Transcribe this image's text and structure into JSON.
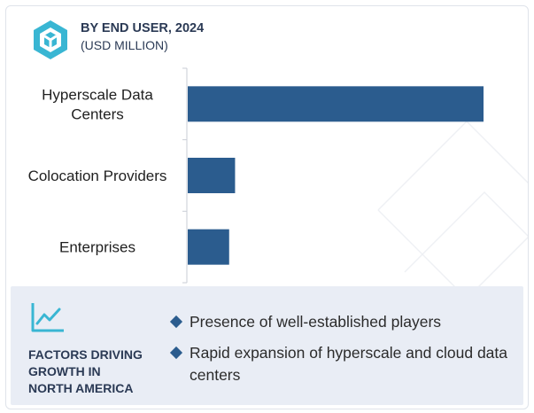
{
  "header": {
    "title": "BY END USER, 2024",
    "subtitle": "(USD MILLION)",
    "logo_icon": "cube-icon",
    "logo_color": "#39b6d3"
  },
  "chart_data": {
    "type": "bar",
    "orientation": "horizontal",
    "categories": [
      [
        "Hyperscale Data",
        "Centers"
      ],
      [
        "Colocation Providers"
      ],
      [
        "Enterprises"
      ]
    ],
    "values": [
      100,
      16,
      14
    ],
    "value_scale": "relative (no axis values shown)",
    "bar_color": "#2b5c8e",
    "grid": false,
    "legend": "none"
  },
  "factors": {
    "icon": "trend-line-icon",
    "title_lines": [
      "FACTORS DRIVING",
      "GROWTH IN",
      "NORTH AMERICA"
    ],
    "items": [
      "Presence of well-established players",
      "Rapid expansion of hyperscale and cloud data centers"
    ],
    "bullet_color": "#2b5c8e",
    "panel_color": "#e9edf5"
  }
}
